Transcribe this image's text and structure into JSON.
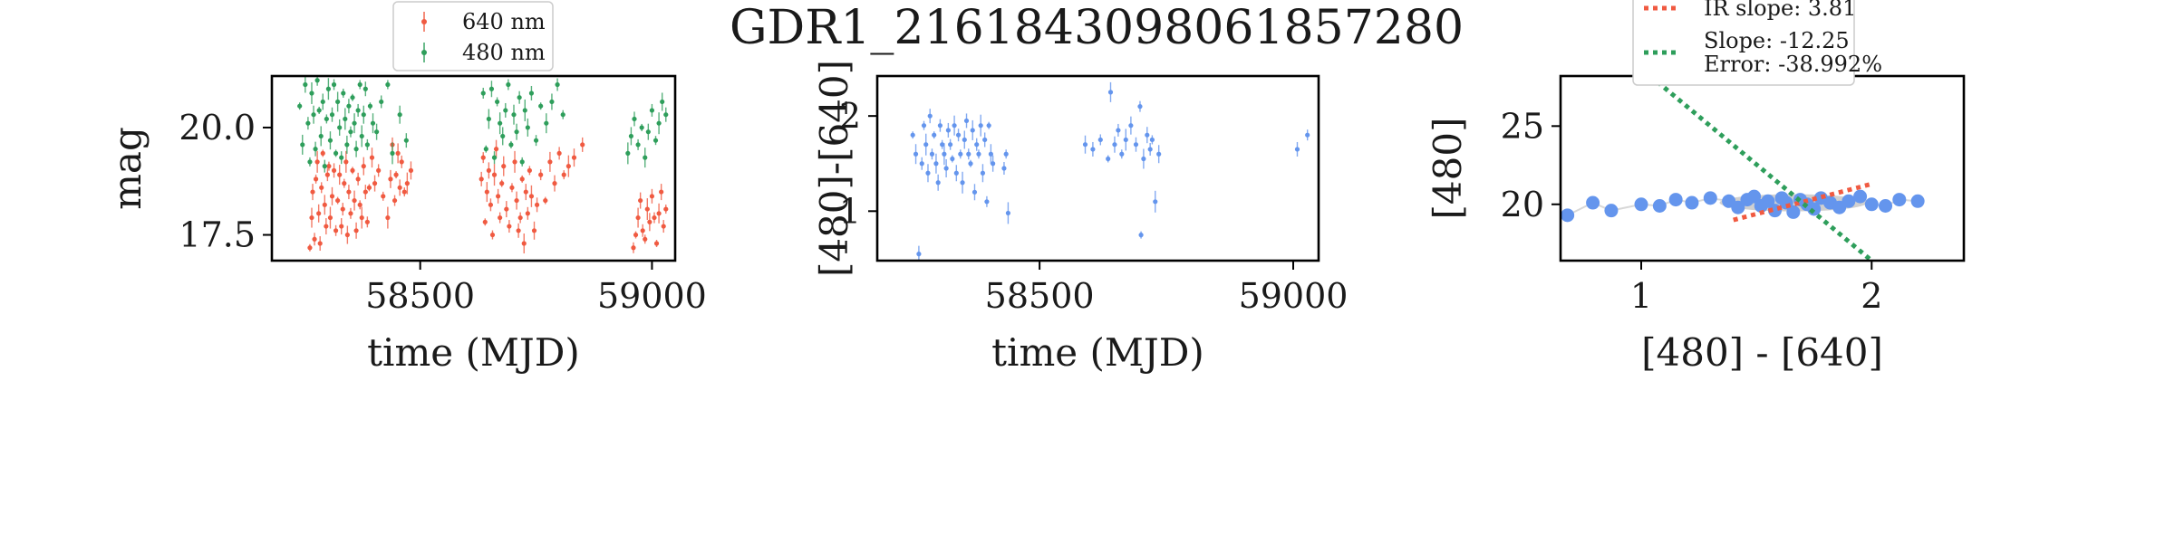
{
  "title": "GDR1_2161843098061857280",
  "colors": {
    "red": "#f05a41",
    "green": "#2e9e5b",
    "blue": "#6495ed",
    "ellipse": "#c0c0c0"
  },
  "chart_data": [
    {
      "id": "lightcurve",
      "type": "scatter",
      "xlabel": "time (MJD)",
      "ylabel": "mag",
      "xlim": [
        58180,
        59050
      ],
      "ylim": [
        21.2,
        16.9
      ],
      "xticks": [
        58500,
        59000
      ],
      "yticks": [
        17.5,
        20.0
      ],
      "ytick_labels": [
        "17.5",
        "20.0"
      ],
      "legend": {
        "placement": "upper center, above axes",
        "entries": [
          "640 nm",
          "480 nm"
        ]
      },
      "series": [
        {
          "name": "640 nm",
          "color": "red",
          "x": [
            58262,
            58266,
            58268,
            58272,
            58275,
            58278,
            58281,
            58284,
            58287,
            58290,
            58294,
            58297,
            58300,
            58303,
            58306,
            58310,
            58314,
            58318,
            58322,
            58326,
            58330,
            58333,
            58336,
            58340,
            58343,
            58346,
            58350,
            58354,
            58358,
            58362,
            58366,
            58370,
            58374,
            58378,
            58382,
            58386,
            58390,
            58396,
            58402,
            58410,
            58420,
            58430,
            58436,
            58440,
            58445,
            58448,
            58452,
            58456,
            58460,
            58466,
            58472,
            58480,
            58632,
            58636,
            58640,
            58644,
            58648,
            58652,
            58656,
            58660,
            58664,
            58668,
            58672,
            58676,
            58680,
            58686,
            58692,
            58698,
            58704,
            58708,
            58712,
            58716,
            58720,
            58724,
            58728,
            58732,
            58736,
            58740,
            58746,
            58752,
            58760,
            58770,
            58780,
            58790,
            58800,
            58810,
            58820,
            58832,
            58850,
            58960,
            58965,
            58970,
            58975,
            58980,
            58985,
            58990,
            58995,
            59000,
            59005,
            59010,
            59015,
            59020,
            59025,
            59030
          ],
          "y": [
            17.2,
            17.9,
            18.5,
            17.4,
            18.8,
            19.2,
            18.0,
            17.3,
            18.6,
            19.4,
            18.2,
            17.7,
            18.9,
            19.1,
            17.9,
            18.4,
            19.0,
            17.6,
            18.3,
            18.9,
            17.7,
            18.1,
            18.7,
            19.2,
            17.5,
            18.5,
            18.0,
            19.0,
            18.3,
            17.6,
            18.8,
            18.2,
            17.9,
            19.1,
            18.5,
            17.8,
            18.6,
            19.3,
            18.7,
            19.0,
            18.4,
            17.9,
            18.8,
            19.6,
            18.3,
            18.9,
            19.4,
            18.6,
            19.2,
            18.5,
            18.7,
            19.0,
            18.8,
            19.3,
            17.8,
            18.5,
            19.0,
            18.2,
            17.5,
            18.9,
            19.5,
            18.4,
            17.9,
            18.7,
            19.1,
            18.1,
            17.7,
            18.6,
            19.2,
            18.3,
            17.6,
            17.9,
            18.8,
            17.3,
            18.5,
            18.0,
            19.0,
            18.4,
            17.6,
            18.2,
            18.9,
            18.3,
            19.2,
            18.7,
            19.4,
            18.9,
            19.1,
            19.3,
            19.6,
            17.2,
            17.5,
            17.9,
            18.3,
            17.6,
            17.4,
            18.1,
            17.8,
            18.4,
            17.9,
            17.3,
            18.0,
            18.5,
            17.7,
            18.1
          ]
        },
        {
          "name": "480 nm",
          "color": "green",
          "x": [
            58240,
            58246,
            58252,
            58258,
            58262,
            58266,
            58270,
            58274,
            58278,
            58282,
            58286,
            58290,
            58294,
            58298,
            58302,
            58306,
            58310,
            58314,
            58318,
            58322,
            58326,
            58330,
            58334,
            58338,
            58342,
            58346,
            58350,
            58354,
            58358,
            58362,
            58366,
            58370,
            58374,
            58378,
            58382,
            58386,
            58392,
            58398,
            58406,
            58416,
            58430,
            58440,
            58456,
            58470,
            58636,
            58642,
            58648,
            58654,
            58660,
            58666,
            58672,
            58678,
            58684,
            58690,
            58696,
            58702,
            58708,
            58714,
            58720,
            58726,
            58732,
            58740,
            58750,
            58760,
            58772,
            58784,
            58796,
            58808,
            58948,
            58955,
            58962,
            58970,
            58978,
            58985,
            58992,
            59000,
            59008,
            59015,
            59022,
            59030
          ],
          "y": [
            20.5,
            19.6,
            21.0,
            20.1,
            19.2,
            20.8,
            20.3,
            19.5,
            21.1,
            20.4,
            19.8,
            20.6,
            19.1,
            20.2,
            20.9,
            19.7,
            20.3,
            21.0,
            19.4,
            20.6,
            20.0,
            19.3,
            20.8,
            20.2,
            19.6,
            20.5,
            19.9,
            20.7,
            20.1,
            19.5,
            20.4,
            21.0,
            19.8,
            20.3,
            20.9,
            19.6,
            20.5,
            20.1,
            19.9,
            20.6,
            21.0,
            19.4,
            20.3,
            19.7,
            20.8,
            19.5,
            20.2,
            20.9,
            19.3,
            20.6,
            20.1,
            19.8,
            20.4,
            21.0,
            19.6,
            20.3,
            19.9,
            20.7,
            19.2,
            20.4,
            20.0,
            20.8,
            19.7,
            20.5,
            20.1,
            20.6,
            21.0,
            20.3,
            19.4,
            19.8,
            20.2,
            19.6,
            20.0,
            19.3,
            19.9,
            20.4,
            19.7,
            20.1,
            20.6,
            20.3
          ]
        }
      ]
    },
    {
      "id": "color-curve",
      "type": "scatter",
      "xlabel": "time (MJD)",
      "ylabel": "[480]-[640]",
      "xlim": [
        58180,
        59050
      ],
      "ylim": [
        2.42,
        0.48
      ],
      "xticks": [
        58500,
        59000
      ],
      "yticks": [
        1,
        2
      ],
      "ytick_labels": [
        "1",
        "2"
      ],
      "series": [
        {
          "name": "",
          "color": "blue",
          "x": [
            58250,
            58256,
            58262,
            58268,
            58272,
            58276,
            58280,
            58284,
            58288,
            58292,
            58296,
            58300,
            58304,
            58308,
            58312,
            58316,
            58320,
            58324,
            58328,
            58332,
            58336,
            58340,
            58344,
            58348,
            58352,
            58356,
            58360,
            58364,
            58368,
            58372,
            58376,
            58380,
            58384,
            58388,
            58392,
            58396,
            58400,
            58404,
            58408,
            58430,
            58434,
            58438,
            58590,
            58605,
            58620,
            58635,
            58640,
            58648,
            58655,
            58662,
            58670,
            58680,
            58690,
            58698,
            58700,
            58705,
            58712,
            58718,
            58722,
            58728,
            58735,
            59008,
            59028
          ],
          "y": [
            1.8,
            1.6,
            0.55,
            1.5,
            1.9,
            1.7,
            1.4,
            2.0,
            1.6,
            1.8,
            1.5,
            1.3,
            1.9,
            1.7,
            1.6,
            1.45,
            1.85,
            1.7,
            1.55,
            1.9,
            1.4,
            1.8,
            1.6,
            1.3,
            1.75,
            1.95,
            1.6,
            1.5,
            1.85,
            1.2,
            1.7,
            1.6,
            1.9,
            1.4,
            1.75,
            1.1,
            1.9,
            1.6,
            1.5,
            1.45,
            1.6,
            0.98,
            1.7,
            1.65,
            1.75,
            1.55,
            2.25,
            1.7,
            1.85,
            1.6,
            1.75,
            1.9,
            1.7,
            2.1,
            0.75,
            1.55,
            1.8,
            1.65,
            1.75,
            1.1,
            1.6,
            1.65,
            1.8
          ]
        }
      ]
    },
    {
      "id": "color-magnitude",
      "type": "scatter",
      "xlabel": "[480] - [640]",
      "ylabel": "[480]",
      "xlim": [
        0.65,
        2.4
      ],
      "ylim": [
        28.2,
        16.4
      ],
      "xticks": [
        1,
        2
      ],
      "yticks": [
        20,
        25
      ],
      "ytick_labels": [
        "20",
        "25"
      ],
      "legend": {
        "placement": "upper right, above axes",
        "entries": [
          "IR slope: 3.81",
          "Slope: -12.25\nError: -38.992%"
        ]
      },
      "series": [
        {
          "name": "",
          "color": "blue",
          "x": [
            0.68,
            0.79,
            0.87,
            1.0,
            1.08,
            1.15,
            1.22,
            1.3,
            1.38,
            1.42,
            1.46,
            1.49,
            1.52,
            1.55,
            1.58,
            1.61,
            1.63,
            1.66,
            1.69,
            1.72,
            1.75,
            1.78,
            1.82,
            1.86,
            1.9,
            1.95,
            2.0,
            2.06,
            2.12,
            2.2
          ],
          "y": [
            19.3,
            20.1,
            19.6,
            20.0,
            19.9,
            20.3,
            20.1,
            20.4,
            20.2,
            19.8,
            20.3,
            20.5,
            19.9,
            20.2,
            19.6,
            20.4,
            20.1,
            19.5,
            20.3,
            20.0,
            19.7,
            20.4,
            20.1,
            19.8,
            20.2,
            20.5,
            20.0,
            19.9,
            20.3,
            20.2
          ]
        }
      ],
      "fits": [
        {
          "name": "IR slope: 3.81",
          "color": "red",
          "x": [
            1.4,
            2.0
          ],
          "y": [
            19.0,
            21.3
          ]
        },
        {
          "name": "Slope: -12.25",
          "color": "green",
          "x": [
            1.04,
            2.0
          ],
          "y": [
            28.2,
            16.4
          ]
        }
      ],
      "ellipse": {
        "color": "ellipse",
        "center": [
          1.66,
          20.1
        ],
        "semi_x": 0.32,
        "semi_y": 0.55
      }
    }
  ]
}
